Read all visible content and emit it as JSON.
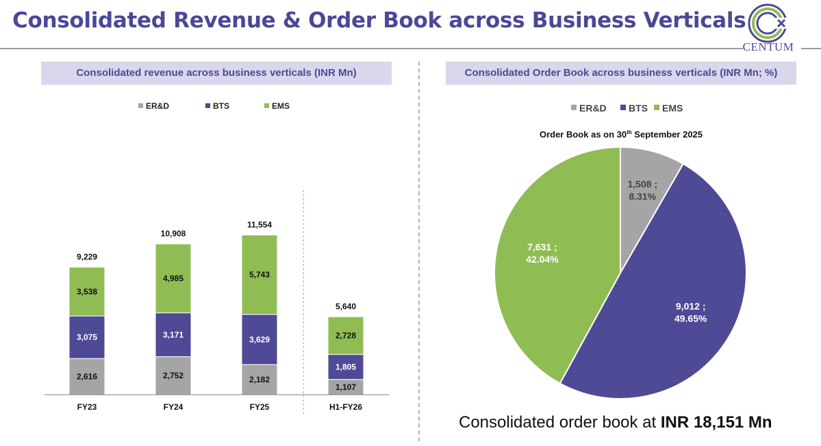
{
  "header": {
    "title": "Consolidated Revenue & Order Book across Business Verticals",
    "logo_text": "CENTUM"
  },
  "colors": {
    "erd": "#a5a5a5",
    "bts": "#4f4a95",
    "ems": "#8fbd54",
    "accent": "#4b4897"
  },
  "chart_data": [
    {
      "type": "bar",
      "stacked": true,
      "title": "Consolidated revenue across business verticals (INR Mn)",
      "categories": [
        "FY23",
        "FY24",
        "FY25",
        "H1-FY26"
      ],
      "series": [
        {
          "name": "ER&D",
          "values": [
            2616,
            2752,
            2182,
            1107
          ],
          "labels": [
            "2,616",
            "2,752",
            "2,182",
            "1,107"
          ]
        },
        {
          "name": "BTS",
          "values": [
            3075,
            3171,
            3629,
            1805
          ],
          "labels": [
            "3,075",
            "3,171",
            "3,629",
            "1,805"
          ]
        },
        {
          "name": "EMS",
          "values": [
            3538,
            4985,
            5743,
            2728
          ],
          "labels": [
            "3,538",
            "4,985",
            "5,743",
            "2,728"
          ]
        }
      ],
      "totals": [
        "9,229",
        "10,908",
        "11,554",
        "5,640"
      ],
      "legend_position": "top",
      "grid": false
    },
    {
      "type": "pie",
      "title": "Consolidated Order Book across business verticals (INR Mn; %)",
      "subtitle_main": "Order Book as on 30",
      "subtitle_sup": "th",
      "subtitle_rest": " September 2025",
      "slices": [
        {
          "name": "ER&D",
          "value": 1508,
          "label_value": "1,508 ;",
          "label_pct": "8.31%"
        },
        {
          "name": "BTS",
          "value": 9012,
          "label_value": "9,012 ;",
          "label_pct": "49.65%"
        },
        {
          "name": "EMS",
          "value": 7631,
          "label_value": "7,631 ;",
          "label_pct": "42.04%"
        }
      ],
      "legend_position": "top"
    }
  ],
  "footer": {
    "prefix": "Consolidated order book at ",
    "value": "INR 18,151 Mn"
  }
}
